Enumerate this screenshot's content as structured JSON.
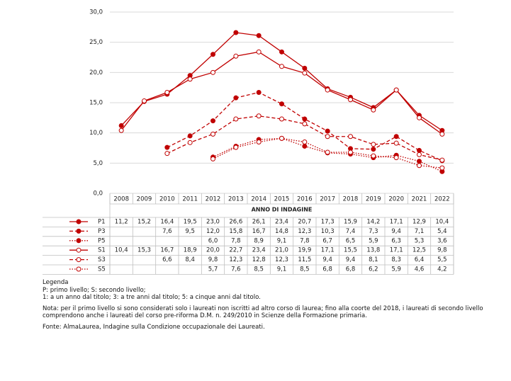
{
  "chart_data": {
    "type": "line",
    "x_label": "ANNO DI INDAGINE",
    "categories": [
      "2008",
      "2009",
      "2010",
      "2011",
      "2012",
      "2013",
      "2014",
      "2015",
      "2016",
      "2017",
      "2018",
      "2019",
      "2020",
      "2021",
      "2022"
    ],
    "ylim": [
      0,
      30
    ],
    "yticks": [
      {
        "value": 0,
        "label": "0,0"
      },
      {
        "value": 5,
        "label": "5,0"
      },
      {
        "value": 10,
        "label": "10,0"
      },
      {
        "value": 15,
        "label": "15,0"
      },
      {
        "value": 20,
        "label": "20,0"
      },
      {
        "value": 25,
        "label": "25,0"
      },
      {
        "value": 30,
        "label": "30,0"
      }
    ],
    "grid": true,
    "series": [
      {
        "name": "P1",
        "color": "#c00000",
        "marker": "filled",
        "dash": "solid",
        "values": [
          11.2,
          15.2,
          16.4,
          19.5,
          23.0,
          26.6,
          26.1,
          23.4,
          20.7,
          17.3,
          15.9,
          14.2,
          17.1,
          12.9,
          10.4
        ],
        "value_labels": [
          "11,2",
          "15,2",
          "16,4",
          "19,5",
          "23,0",
          "26,6",
          "26,1",
          "23,4",
          "20,7",
          "17,3",
          "15,9",
          "14,2",
          "17,1",
          "12,9",
          "10,4"
        ]
      },
      {
        "name": "P3",
        "color": "#c00000",
        "marker": "filled",
        "dash": "dashed",
        "values": [
          null,
          null,
          7.6,
          9.5,
          12.0,
          15.8,
          16.7,
          14.8,
          12.3,
          10.3,
          7.4,
          7.3,
          9.4,
          7.1,
          5.4
        ],
        "value_labels": [
          null,
          null,
          "7,6",
          "9,5",
          "12,0",
          "15,8",
          "16,7",
          "14,8",
          "12,3",
          "10,3",
          "7,4",
          "7,3",
          "9,4",
          "7,1",
          "5,4"
        ]
      },
      {
        "name": "P5",
        "color": "#c00000",
        "marker": "filled",
        "dash": "dotted",
        "values": [
          null,
          null,
          null,
          null,
          6.0,
          7.8,
          8.9,
          9.1,
          7.8,
          6.7,
          6.5,
          5.9,
          6.3,
          5.3,
          3.6
        ],
        "value_labels": [
          null,
          null,
          null,
          null,
          "6,0",
          "7,8",
          "8,9",
          "9,1",
          "7,8",
          "6,7",
          "6,5",
          "5,9",
          "6,3",
          "5,3",
          "3,6"
        ]
      },
      {
        "name": "S1",
        "color": "#c00000",
        "marker": "open",
        "dash": "solid",
        "values": [
          10.4,
          15.3,
          16.7,
          18.9,
          20.0,
          22.7,
          23.4,
          21.0,
          19.9,
          17.1,
          15.5,
          13.8,
          17.1,
          12.5,
          9.8
        ],
        "value_labels": [
          "10,4",
          "15,3",
          "16,7",
          "18,9",
          "20,0",
          "22,7",
          "23,4",
          "21,0",
          "19,9",
          "17,1",
          "15,5",
          "13,8",
          "17,1",
          "12,5",
          "9,8"
        ]
      },
      {
        "name": "S3",
        "color": "#c00000",
        "marker": "open",
        "dash": "dashed",
        "values": [
          null,
          null,
          6.6,
          8.4,
          9.8,
          12.3,
          12.8,
          12.3,
          11.5,
          9.4,
          9.4,
          8.1,
          8.3,
          6.4,
          5.5
        ],
        "value_labels": [
          null,
          null,
          "6,6",
          "8,4",
          "9,8",
          "12,3",
          "12,8",
          "12,3",
          "11,5",
          "9,4",
          "9,4",
          "8,1",
          "8,3",
          "6,4",
          "5,5"
        ]
      },
      {
        "name": "S5",
        "color": "#c00000",
        "marker": "open",
        "dash": "dotted",
        "values": [
          null,
          null,
          null,
          null,
          5.7,
          7.6,
          8.5,
          9.1,
          8.5,
          6.8,
          6.8,
          6.2,
          5.9,
          4.6,
          4.2
        ],
        "value_labels": [
          null,
          null,
          null,
          null,
          "5,7",
          "7,6",
          "8,5",
          "9,1",
          "8,5",
          "6,8",
          "6,8",
          "6,2",
          "5,9",
          "4,6",
          "4,2"
        ]
      }
    ]
  },
  "notes": {
    "heading": "Legenda",
    "line1": "P: primo livello; S: secondo livello;",
    "line2": "1: a un anno dal titolo; 3: a tre anni dal titolo; 5: a cinque anni dal titolo.",
    "note": "Nota: per il primo livello si sono considerati solo i laureati non iscritti ad altro corso di laurea; fino alla coorte del 2018, i laureati di secondo livello comprendono anche i laureati del corso pre-riforma D.M. n. 249/2010 in Scienze della Formazione primaria.",
    "source": "Fonte: AlmaLaurea, Indagine sulla Condizione occupazionale dei Laureati."
  }
}
